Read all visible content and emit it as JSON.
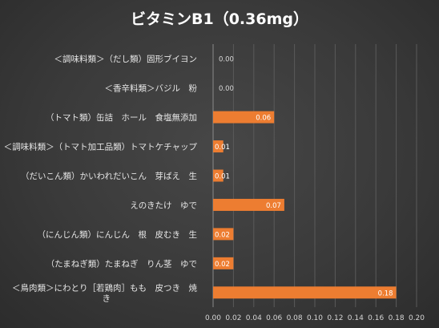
{
  "chart_data": {
    "type": "bar",
    "orientation": "horizontal",
    "title": "ビタミンB1（0.36mg）",
    "xlabel": "",
    "ylabel": "",
    "xlim": [
      0,
      0.2
    ],
    "ticks": [
      "0.00",
      "0.02",
      "0.04",
      "0.06",
      "0.08",
      "0.10",
      "0.12",
      "0.14",
      "0.16",
      "0.18",
      "0.20"
    ],
    "grid": true,
    "bar_color": "#ED7D31",
    "categories": [
      [
        "＜調味料類＞（だし類）固形ブイヨン"
      ],
      [
        "＜香辛料類＞バジル　粉"
      ],
      [
        "（トマト類）缶詰　ホール　食塩無添加"
      ],
      [
        "＜調味料類＞（トマト加工品類）トマトケチャップ"
      ],
      [
        "（だいこん類）かいわれだいこん　芽ばえ　生"
      ],
      [
        "えのきたけ　ゆで"
      ],
      [
        "（にんじん類）にんじん　根　皮むき　生"
      ],
      [
        "（たまねぎ類）たまねぎ　りん茎　ゆで"
      ],
      [
        "＜鳥肉類＞にわとり［若鶏肉］もも　皮つき　焼",
        "き"
      ]
    ],
    "values": [
      0.0,
      0.0,
      0.06,
      0.01,
      0.01,
      0.07,
      0.02,
      0.02,
      0.18
    ],
    "labels": [
      "0.00",
      "0.00",
      "0.06",
      "0.01",
      "0.01",
      "0.07",
      "0.02",
      "0.02",
      "0.18"
    ]
  }
}
